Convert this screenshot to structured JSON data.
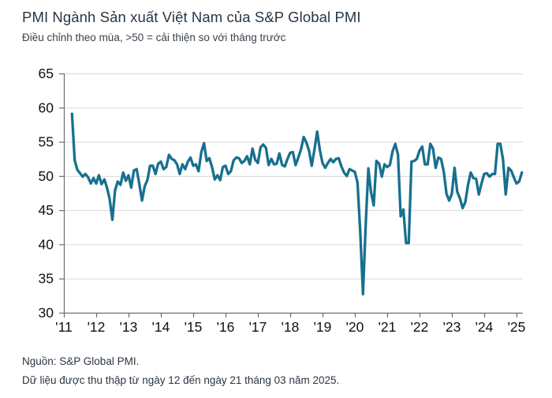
{
  "header": {
    "title": "PMI Ngành Sản xuất Việt Nam của S&P Global PMI",
    "subtitle": "Điều chỉnh theo mùa, >50 = cải thiện so với tháng trước"
  },
  "footer": {
    "source": "Nguồn: S&P Global PMI.",
    "note": "Dữ liệu được thu thập từ ngày 12 đến ngày 21 tháng 03 năm 2025."
  },
  "colors": {
    "line": "#17708f",
    "gridline": "#d8d8d8",
    "axis": "#6b6d70",
    "tick_label": "#111111"
  },
  "chart_data": {
    "type": "line",
    "series_name": "PMI",
    "start": "2011-04",
    "frequency": "monthly",
    "ylim": [
      30,
      65
    ],
    "y_ticks": [
      30,
      35,
      40,
      45,
      50,
      55,
      60,
      65
    ],
    "x_tick_labels": [
      "'11",
      "'12",
      "'13",
      "'14",
      "'15",
      "'16",
      "'17",
      "'18",
      "'19",
      "'20",
      "'21",
      "'22",
      "'23",
      "'24",
      "'25"
    ],
    "reference_level": 50,
    "grid": true,
    "legend": false,
    "values": [
      59.1,
      52.3,
      50.9,
      50.4,
      49.9,
      50.3,
      49.8,
      48.9,
      49.7,
      48.9,
      50.1,
      48.8,
      49.5,
      48.3,
      46.6,
      43.6,
      47.9,
      49.2,
      48.7,
      50.5,
      49.3,
      50.1,
      48.3,
      50.8,
      51.0,
      48.8,
      46.4,
      48.5,
      49.4,
      51.5,
      51.5,
      50.3,
      51.8,
      52.1,
      51.0,
      51.3,
      53.1,
      52.5,
      52.3,
      51.7,
      50.3,
      51.7,
      51.0,
      52.1,
      52.7,
      51.5,
      51.7,
      50.7,
      53.5,
      54.8,
      52.2,
      52.6,
      51.3,
      49.5,
      50.1,
      49.4,
      51.3,
      51.5,
      50.3,
      50.7,
      52.3,
      52.7,
      52.6,
      51.9,
      52.2,
      52.9,
      51.7,
      54.0,
      52.4,
      51.9,
      54.2,
      54.6,
      54.1,
      51.6,
      52.5,
      51.7,
      51.8,
      53.3,
      51.6,
      51.4,
      52.5,
      53.4,
      53.5,
      51.6,
      52.7,
      53.9,
      55.7,
      54.9,
      53.7,
      51.5,
      53.9,
      56.5,
      53.8,
      51.9,
      51.2,
      51.9,
      52.5,
      52.0,
      52.5,
      52.6,
      51.4,
      50.5,
      50.0,
      51.0,
      50.8,
      50.6,
      49.0,
      41.9,
      32.7,
      42.7,
      51.1,
      47.6,
      45.7,
      52.2,
      51.8,
      49.9,
      51.7,
      51.3,
      51.6,
      53.6,
      54.7,
      53.1,
      44.1,
      45.1,
      40.2,
      40.2,
      52.1,
      52.2,
      52.5,
      53.7,
      54.3,
      51.7,
      51.7,
      54.7,
      54.0,
      51.2,
      52.7,
      52.5,
      50.6,
      47.4,
      46.4,
      47.4,
      51.2,
      47.7,
      46.7,
      45.3,
      46.2,
      48.7,
      50.5,
      49.7,
      49.6,
      47.3,
      48.9,
      50.3,
      50.4,
      49.9,
      50.3,
      50.3,
      54.7,
      54.7,
      52.4,
      47.3,
      51.2,
      50.8,
      49.8,
      48.9,
      49.2,
      50.5
    ]
  }
}
